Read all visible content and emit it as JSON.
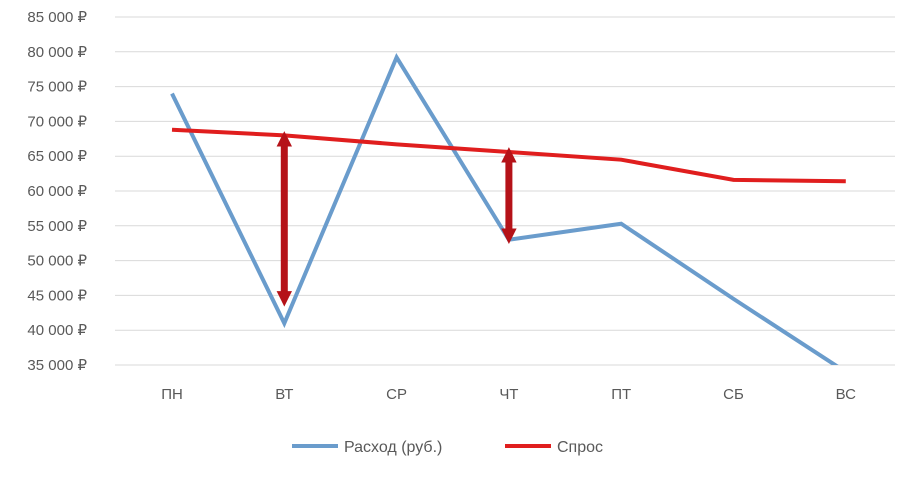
{
  "chart_data": {
    "type": "line",
    "title": "",
    "xlabel": "",
    "ylabel": "",
    "categories": [
      "ПН",
      "ВТ",
      "СР",
      "ЧТ",
      "ПТ",
      "СБ",
      "ВС"
    ],
    "ylim": [
      35000,
      85000
    ],
    "y_ticks": [
      35000,
      40000,
      45000,
      50000,
      55000,
      60000,
      65000,
      70000,
      75000,
      80000,
      85000
    ],
    "y_tick_labels": [
      "35 000 ₽",
      "40 000 ₽",
      "45 000 ₽",
      "50 000 ₽",
      "55 000 ₽",
      "60 000 ₽",
      "65 000 ₽",
      "70 000 ₽",
      "75 000 ₽",
      "80 000 ₽",
      "85 000 ₽"
    ],
    "grid": true,
    "legend_position": "bottom",
    "series": [
      {
        "name": "Расход (руб.)",
        "color": "#6a9ccc",
        "values": [
          74000,
          41000,
          79200,
          53000,
          55300,
          44500,
          34000
        ]
      },
      {
        "name": "Спрос",
        "color": "#e01e1e",
        "values": [
          68800,
          68000,
          66700,
          65600,
          64500,
          61600,
          61400
        ]
      }
    ],
    "annotations": [
      {
        "type": "double-arrow",
        "category": "ВТ",
        "from": 67500,
        "to": 44500,
        "color": "#b51218"
      },
      {
        "type": "double-arrow",
        "category": "ЧТ",
        "from": 65200,
        "to": 53500,
        "color": "#b51218"
      }
    ]
  }
}
